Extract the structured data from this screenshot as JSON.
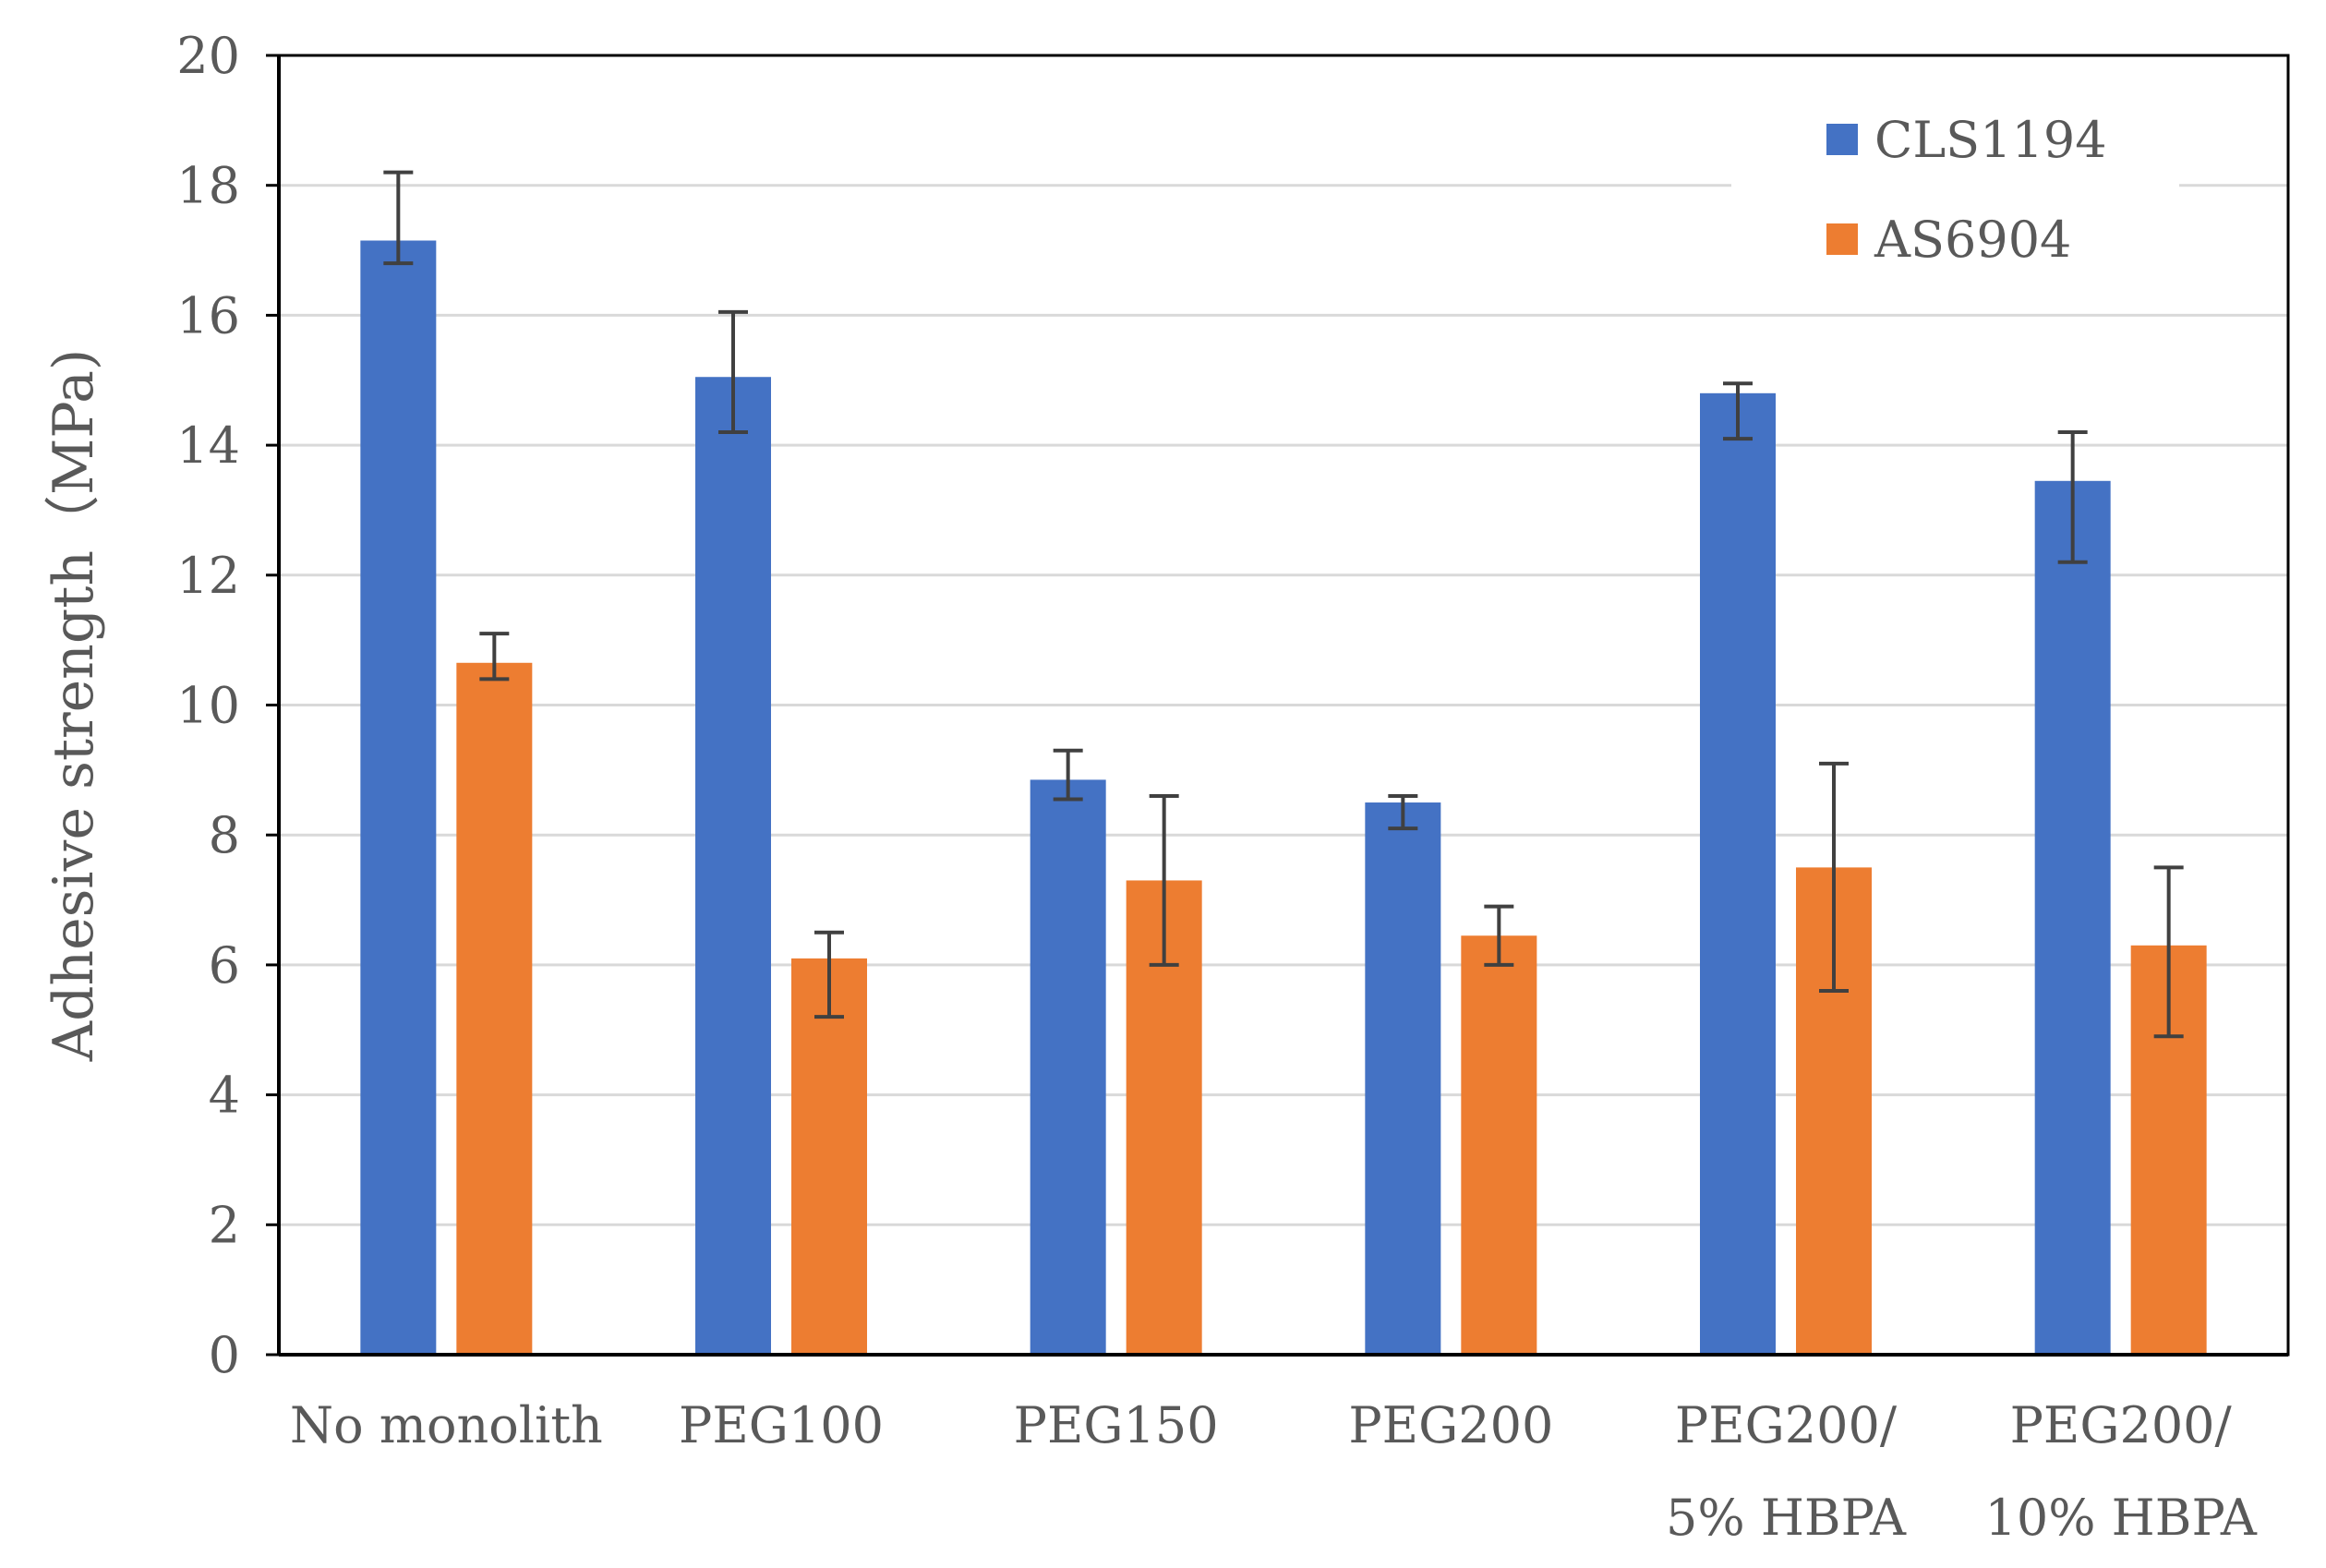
{
  "chart_data": {
    "type": "bar",
    "title": "",
    "xlabel": "",
    "ylabel": "Adhesive strength（MPa)",
    "ylim": [
      0,
      20
    ],
    "yticks": [
      0,
      2,
      4,
      6,
      8,
      10,
      12,
      14,
      16,
      18,
      20
    ],
    "grid": true,
    "legend_position": "top-right",
    "categories": [
      [
        "No monolith"
      ],
      [
        "PEG100"
      ],
      [
        "PEG150"
      ],
      [
        "PEG200"
      ],
      [
        "PEG200/",
        "5% HBPA"
      ],
      [
        "PEG200/",
        "10% HBPA"
      ]
    ],
    "series": [
      {
        "name": "CLS1194",
        "color": "#4472C4",
        "values": [
          17.15,
          15.05,
          8.85,
          8.5,
          14.8,
          13.45
        ],
        "error_low": [
          16.8,
          14.2,
          8.55,
          8.1,
          14.1,
          12.2
        ],
        "error_high": [
          18.2,
          16.05,
          9.3,
          8.6,
          14.95,
          14.2
        ]
      },
      {
        "name": "AS6904",
        "color": "#ED7D31",
        "values": [
          10.65,
          6.1,
          7.3,
          6.45,
          7.5,
          6.3
        ],
        "error_low": [
          10.4,
          5.2,
          6.0,
          6.0,
          5.6,
          4.9
        ],
        "error_high": [
          11.1,
          6.5,
          8.6,
          6.9,
          9.1,
          7.5
        ]
      }
    ],
    "colors": {
      "grid": "#D9D9D9",
      "axis": "#000000",
      "error_bar": "#404040",
      "text": "#595959"
    }
  }
}
